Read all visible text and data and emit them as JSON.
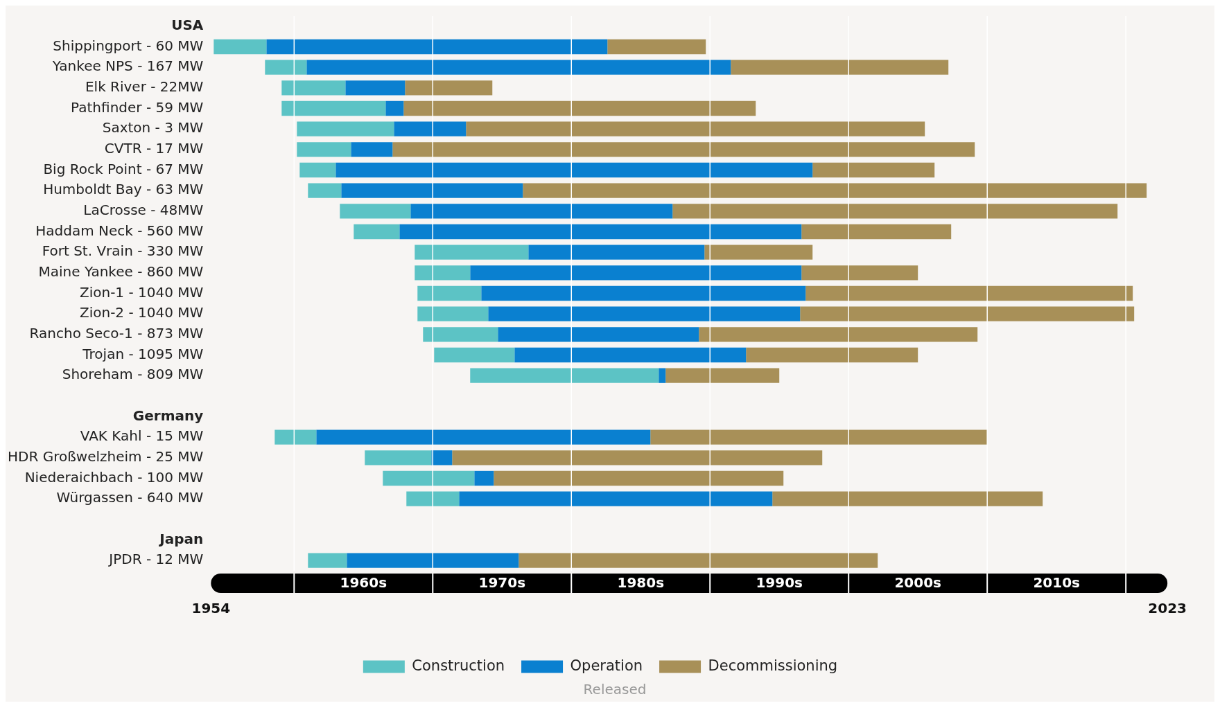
{
  "chart_data": {
    "type": "bar",
    "orientation": "horizontal",
    "categories": [
      "USA",
      "Shippingport - 60 MW",
      "Yankee NPS - 167 MW",
      "Elk River - 22MW",
      "Pathfinder - 59 MW",
      "Saxton - 3 MW",
      "CVTR - 17 MW",
      "Big Rock Point - 67 MW",
      "Humboldt Bay - 63 MW",
      "LaCrosse - 48MW",
      "Haddam Neck - 560 MW",
      "Fort St. Vrain - 330 MW",
      "Maine Yankee - 860 MW",
      "Zion-1 - 1040 MW",
      "Zion-2 - 1040 MW",
      "Rancho Seco-1 - 873 MW",
      "Trojan - 1095 MW",
      "Shoreham - 809 MW",
      null,
      "Germany",
      "VAK Kahl - 15 MW",
      "HDR Großwelzheim - 25 MW",
      "Niederaichbach - 100 MW",
      "Würgassen - 640 MW",
      null,
      "Japan",
      "JPDR - 12 MW"
    ],
    "series": [
      {
        "name": "Construction",
        "color": "#5cc3c5",
        "base": [
          null,
          1954.2,
          1957.9,
          1959.1,
          1959.1,
          1960.2,
          1960.2,
          1960.4,
          1961.0,
          1963.3,
          1964.3,
          1968.7,
          1968.7,
          1968.9,
          1968.9,
          1969.3,
          1970.1,
          1972.7,
          null,
          null,
          1958.6,
          1965.1,
          1966.4,
          1968.1,
          null,
          null,
          1961.0
        ],
        "values": [
          null,
          3.8,
          3.0,
          4.6,
          7.5,
          7.0,
          3.9,
          2.6,
          2.4,
          5.1,
          3.3,
          8.2,
          4.0,
          4.6,
          5.1,
          5.4,
          5.8,
          13.6,
          null,
          null,
          3.0,
          4.8,
          6.6,
          3.8,
          null,
          null,
          2.8
        ]
      },
      {
        "name": "Operation",
        "color": "#0a80d0",
        "base": [
          null,
          1958.0,
          1960.9,
          1963.7,
          1966.6,
          1967.2,
          1964.1,
          1963.0,
          1963.4,
          1968.4,
          1967.6,
          1976.9,
          1972.7,
          1973.5,
          1974.0,
          1974.7,
          1975.9,
          1986.3,
          null,
          null,
          1961.6,
          1969.9,
          1973.0,
          1971.9,
          null,
          null,
          1963.8
        ],
        "values": [
          null,
          24.6,
          30.6,
          4.3,
          1.3,
          5.2,
          3.0,
          34.4,
          13.1,
          18.9,
          29.0,
          12.7,
          23.9,
          23.4,
          22.5,
          14.5,
          16.7,
          0.5,
          null,
          null,
          24.1,
          1.5,
          1.4,
          22.6,
          null,
          null,
          12.4
        ]
      },
      {
        "name": "Decommissioning",
        "color": "#a89058",
        "base": [
          null,
          1982.6,
          1991.5,
          1968.0,
          1967.9,
          1972.4,
          1967.1,
          1997.4,
          1976.5,
          1987.3,
          1996.6,
          1989.6,
          1996.6,
          1996.9,
          1996.5,
          1989.2,
          1992.6,
          1986.8,
          null,
          null,
          1985.7,
          1971.4,
          1974.4,
          1994.5,
          null,
          null,
          1976.2
        ],
        "values": [
          null,
          7.1,
          15.7,
          6.3,
          25.4,
          33.1,
          42.0,
          8.8,
          45.0,
          32.1,
          10.8,
          7.8,
          8.4,
          23.6,
          24.1,
          20.1,
          12.4,
          8.2,
          null,
          null,
          24.3,
          26.7,
          20.9,
          19.5,
          null,
          null,
          25.9
        ]
      }
    ],
    "xlim": [
      1954,
      2023
    ],
    "xticks": [
      1954,
      {
        "value": 1960,
        "label": null
      },
      {
        "value": 1970,
        "label": null
      },
      {
        "value": 1980,
        "label": null
      },
      {
        "value": 1990,
        "label": null
      },
      {
        "value": 2000,
        "label": null
      },
      {
        "value": 2010,
        "label": null
      },
      {
        "value": 2020,
        "label": null
      },
      2023
    ],
    "grid": "x",
    "legend": "bottom",
    "annotations": [
      "1960s",
      "1970s",
      "1980s",
      "1990s",
      "2000s",
      "2010s",
      "Released"
    ]
  }
}
